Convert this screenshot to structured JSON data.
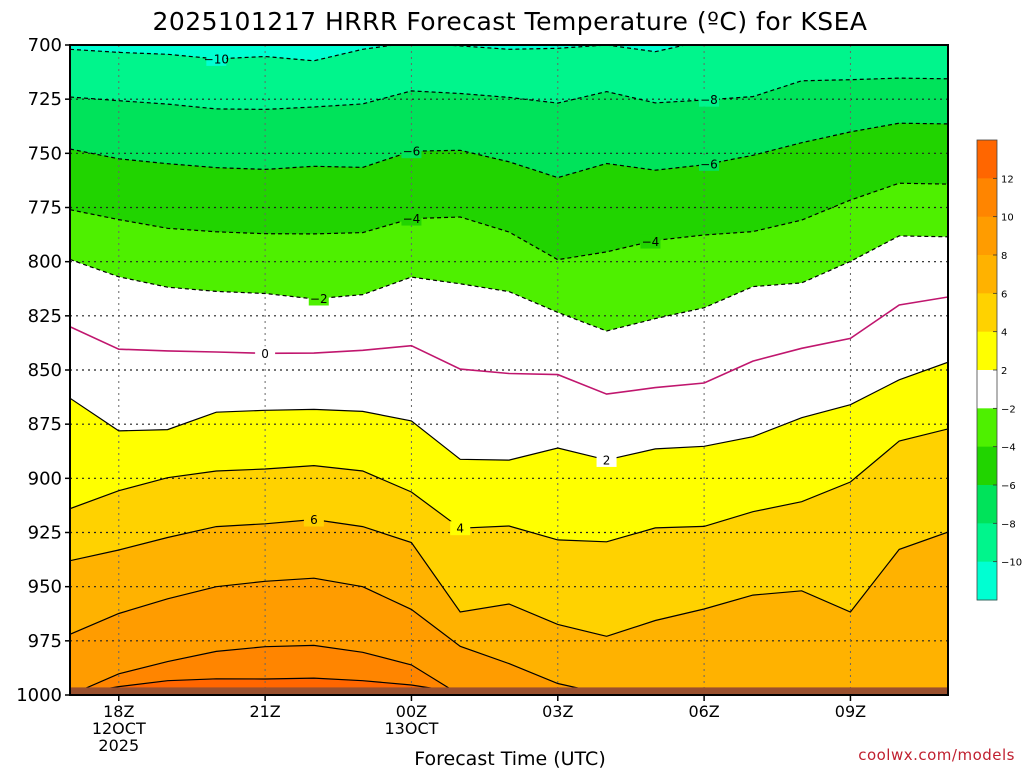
{
  "title": "2025101217 HRRR Forecast Temperature (ºC) for KSEA",
  "credit": "coolwx.com/models",
  "chart_data": {
    "type": "contour",
    "title": "2025101217 HRRR Forecast Temperature (ºC) for KSEA",
    "xlabel": "Forecast Time (UTC)",
    "ylabel": "",
    "x_hours": [
      17,
      18,
      19,
      20,
      21,
      22,
      23,
      24,
      25,
      26,
      27,
      28,
      29,
      30,
      31,
      32,
      33,
      34,
      35
    ],
    "xlim": [
      17,
      35
    ],
    "ylim": [
      1000,
      700
    ],
    "y_ticks": [
      700,
      725,
      750,
      775,
      800,
      825,
      850,
      875,
      900,
      925,
      950,
      975,
      1000
    ],
    "x_ticks": [
      {
        "hour": 18,
        "lines": [
          "18Z",
          "12OCT",
          "2025"
        ]
      },
      {
        "hour": 21,
        "lines": [
          "21Z"
        ]
      },
      {
        "hour": 24,
        "lines": [
          "00Z",
          "13OCT"
        ]
      },
      {
        "hour": 27,
        "lines": [
          "03Z"
        ]
      },
      {
        "hour": 30,
        "lines": [
          "06Z"
        ]
      },
      {
        "hour": 33,
        "lines": [
          "09Z"
        ]
      }
    ],
    "isotherms": [
      {
        "value": 12,
        "pressure": [
          1000,
          996.1,
          993.4,
          992.5,
          992.6,
          992.2,
          993.4,
          995.4,
          998.9,
          1000,
          1000,
          1000,
          1000,
          1000,
          1000,
          1000,
          1000,
          1000,
          1000
        ]
      },
      {
        "value": 10,
        "pressure": [
          1000,
          990.2,
          984.6,
          979.9,
          977.7,
          977.1,
          980.3,
          986.1,
          1000,
          1000,
          1000,
          1000,
          1000,
          1000,
          1000,
          1000,
          1000,
          1000,
          1000
        ]
      },
      {
        "value": 8,
        "pressure": [
          972,
          962.4,
          955.6,
          950.0,
          947.5,
          946.1,
          950.0,
          960.5,
          977.5,
          985.5,
          994.7,
          999.7,
          1000,
          1000,
          1000,
          1000,
          1000,
          1000,
          1000
        ]
      },
      {
        "value": 6,
        "pressure": [
          938,
          933.1,
          927.3,
          922.3,
          921.0,
          919.0,
          922.3,
          929.6,
          961.7,
          958.0,
          967.4,
          972.9,
          965.6,
          960.3,
          953.9,
          951.9,
          961.7,
          932.8,
          924.8
        ]
      },
      {
        "value": 4,
        "pressure": [
          914,
          905.7,
          899.7,
          896.6,
          895.7,
          894.1,
          896.6,
          906.3,
          923.0,
          922.0,
          928.4,
          929.3,
          922.9,
          922.2,
          915.4,
          910.8,
          901.7,
          882.8,
          877.2
        ]
      },
      {
        "value": 2,
        "pressure": [
          863,
          878.1,
          877.5,
          869.5,
          868.6,
          868.2,
          869.1,
          873.5,
          891.2,
          891.6,
          886.0,
          891.5,
          886.4,
          885.2,
          880.8,
          872.0,
          866.0,
          854.5,
          846.4
        ]
      },
      {
        "value": 0,
        "pressure": [
          830,
          840.4,
          841.2,
          841.7,
          842.3,
          842.2,
          840.9,
          838.8,
          849.6,
          851.6,
          852.1,
          861.1,
          858.1,
          856.0,
          845.9,
          840.0,
          835.4,
          820.0,
          816.3
        ]
      },
      {
        "value": -2,
        "pressure": [
          799,
          807.0,
          811.8,
          813.7,
          814.7,
          817.2,
          815.2,
          807.1,
          810.2,
          813.8,
          823.4,
          832.0,
          826.3,
          821.3,
          811.5,
          809.8,
          799.9,
          788.1,
          788.5
        ]
      },
      {
        "value": -4,
        "pressure": [
          776,
          780.6,
          784.6,
          786.2,
          787.1,
          787.2,
          786.6,
          780.1,
          779.4,
          786.3,
          799.1,
          795.5,
          790.2,
          787.7,
          786.1,
          780.8,
          771.6,
          763.8,
          764.2
        ]
      },
      {
        "value": -6,
        "pressure": [
          748,
          752.5,
          754.8,
          756.6,
          757.4,
          756.0,
          756.5,
          749.0,
          748.6,
          753.9,
          761.2,
          754.7,
          757.8,
          755.3,
          750.9,
          745.1,
          740.1,
          736.1,
          736.4
        ]
      },
      {
        "value": -8,
        "pressure": [
          724,
          725.7,
          727.3,
          729.5,
          729.7,
          728.6,
          727.2,
          721.2,
          722.4,
          724.2,
          726.8,
          721.5,
          726.7,
          725.4,
          723.8,
          716.5,
          716.0,
          715.3,
          715.6
        ]
      },
      {
        "value": -10,
        "pressure": [
          702,
          703.4,
          704.3,
          706.4,
          705.3,
          707.3,
          702.0,
          698.9,
          700.4,
          702.0,
          701.5,
          700.0,
          703.1,
          698.0,
          699.5,
          696.3,
          697.3,
          697.4,
          697.6
        ]
      }
    ],
    "contour_labels": [
      {
        "value": "−10",
        "hour": 20.0
      },
      {
        "value": "−8",
        "hour": 30.1
      },
      {
        "value": "−6",
        "hour": 24.0
      },
      {
        "value": "−6",
        "hour": 30.1
      },
      {
        "value": "−4",
        "hour": 24.0
      },
      {
        "value": "−4",
        "hour": 28.9
      },
      {
        "value": "−2",
        "hour": 22.1
      },
      {
        "value": "0",
        "hour": 21.0
      },
      {
        "value": "2",
        "hour": 28.0
      },
      {
        "value": "4",
        "hour": 25.0
      },
      {
        "value": "6",
        "hour": 22.0
      }
    ],
    "color_levels": [
      {
        "range": [
          12,
          14
        ],
        "color": "#ff6600"
      },
      {
        "range": [
          10,
          12
        ],
        "color": "#ff8500"
      },
      {
        "range": [
          8,
          10
        ],
        "color": "#ff9c00"
      },
      {
        "range": [
          6,
          8
        ],
        "color": "#ffb200"
      },
      {
        "range": [
          4,
          6
        ],
        "color": "#ffd200"
      },
      {
        "range": [
          2,
          4
        ],
        "color": "#ffff00"
      },
      {
        "range": [
          -2,
          2
        ],
        "color": "#ffffff"
      },
      {
        "range": [
          -4,
          -2
        ],
        "color": "#4ef000"
      },
      {
        "range": [
          -6,
          -4
        ],
        "color": "#21d400"
      },
      {
        "range": [
          -8,
          -6
        ],
        "color": "#00e35a"
      },
      {
        "range": [
          -10,
          -8
        ],
        "color": "#00f58c"
      },
      {
        "range": [
          -12,
          -10
        ],
        "color": "#00ffd2"
      }
    ],
    "colorbar_ticks": [
      "12",
      "10",
      "8",
      "6",
      "4",
      "2",
      "−2",
      "−4",
      "−6",
      "−8",
      "−10"
    ],
    "line_styles": {
      "positive": "solid black",
      "zero": "solid #c0166e",
      "negative": "dashed black"
    },
    "ground_color": "#99502e",
    "grid": true
  }
}
